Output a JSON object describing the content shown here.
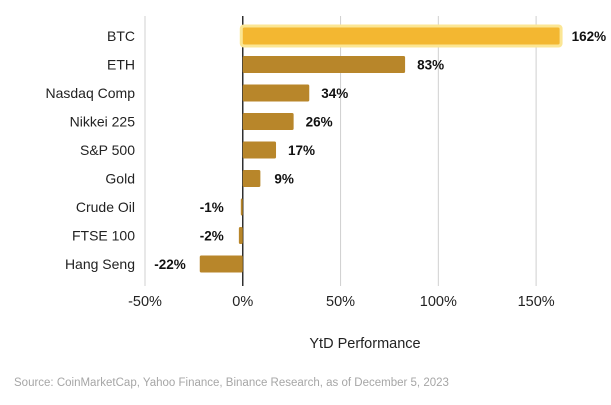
{
  "chart_data": {
    "type": "bar",
    "orientation": "horizontal",
    "categories": [
      "BTC",
      "ETH",
      "Nasdaq Comp",
      "Nikkei 225",
      "S&P 500",
      "Gold",
      "Crude Oil",
      "FTSE 100",
      "Hang Seng"
    ],
    "values": [
      162,
      83,
      34,
      26,
      17,
      9,
      -1,
      -2,
      -22
    ],
    "data_labels": [
      "162%",
      "83%",
      "34%",
      "26%",
      "17%",
      "9%",
      "-1%",
      "-2%",
      "-22%"
    ],
    "highlighted_category": "BTC",
    "xlabel": "YtD Performance",
    "xlim": [
      -50,
      175
    ],
    "xticks": [
      -50,
      0,
      50,
      100,
      150
    ],
    "xtick_labels": [
      "-50%",
      "0%",
      "50%",
      "100%",
      "150%"
    ],
    "grid": "vertical",
    "colors": {
      "bar": "#b8862a",
      "highlight_bar": "#f3b731",
      "highlight_glow": "#fbe694",
      "grid": "#d0d0d0",
      "source_text": "#a6a6a6"
    }
  },
  "source": "Source: CoinMarketCap, Yahoo Finance, Binance Research, as of December 5, 2023"
}
